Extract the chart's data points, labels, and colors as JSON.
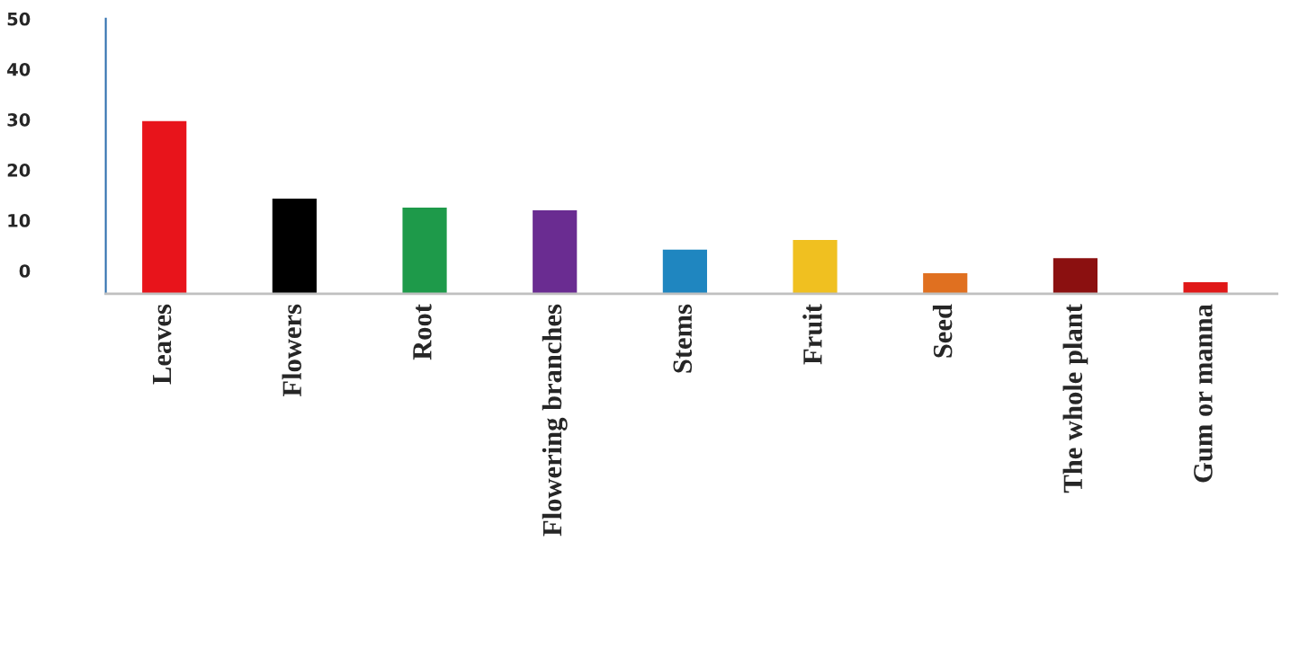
{
  "chart_data": {
    "type": "bar",
    "categories": [
      "Leaves",
      "Flowers",
      "Root",
      "Flowering branches",
      "Stems",
      "Fruit",
      "Seed",
      "The whole plant",
      "Gum or manna"
    ],
    "values": [
      34.3,
      18.9,
      17.1,
      16.6,
      8.8,
      10.7,
      4.1,
      7.1,
      2.3
    ],
    "base": [
      -4.6,
      -4.6,
      -4.6,
      -4.6,
      -4.6,
      -4.6,
      -4.6,
      -4.6,
      -4.6
    ],
    "colors": [
      "#e8141b",
      "#000000",
      "#1e9a4a",
      "#6a2c91",
      "#1f86c0",
      "#f0c020",
      "#e07020",
      "#8b1010",
      "#e01818"
    ],
    "ylim": [
      -4.6,
      50
    ],
    "yticks": [
      0,
      10,
      20,
      30,
      40,
      50
    ],
    "grid": false,
    "legend": false
  }
}
